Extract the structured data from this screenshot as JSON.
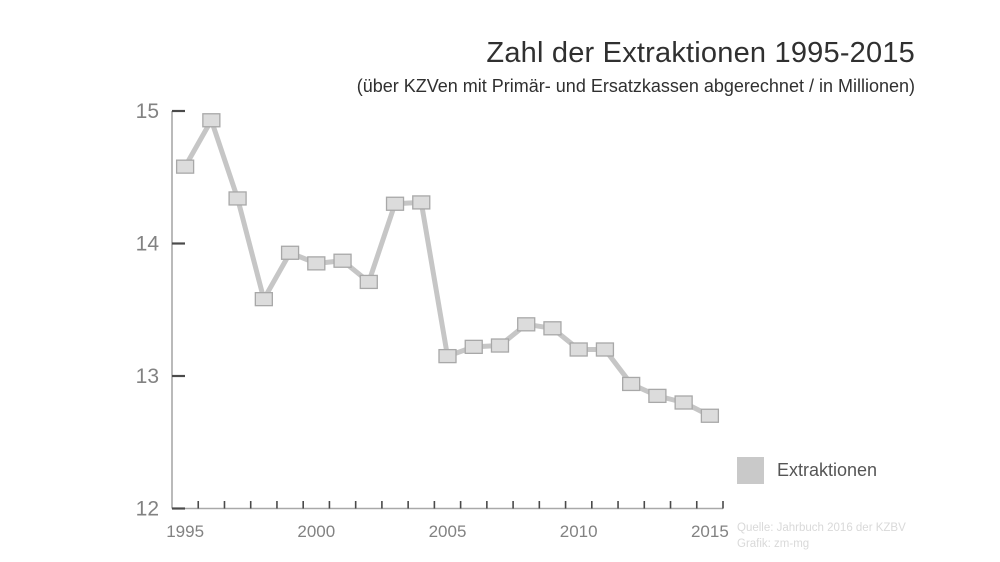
{
  "header": {
    "title": "Zahl der Extraktionen 1995-2015",
    "subtitle": "(über KZVen mit Primär- und Ersatzkassen abgerechnet / in Millionen)"
  },
  "legend": {
    "label": "Extraktionen"
  },
  "credits": {
    "source": "Quelle: Jahrbuch 2016 der KZBV",
    "graphic": "Grafik: zm-mg"
  },
  "colors": {
    "line": "#c6c6c6",
    "marker_fill": "#dcdcdc",
    "marker_stroke": "#a8a8a8",
    "axis": "#a9a9a9",
    "tick": "#4a4a4a",
    "tick_label": "#828282",
    "legend_swatch": "#c9c9c9",
    "title_text": "#303030",
    "legend_text": "#555555",
    "credits_text": "#d9d9d9"
  },
  "chart_data": {
    "type": "line",
    "title": "Zahl der Extraktionen 1995-2015",
    "subtitle": "(über KZVen mit Primär- und Ersatzkassen abgerechnet / in Millionen)",
    "series_name": "Extraktionen",
    "x": [
      1995,
      1996,
      1997,
      1998,
      1999,
      2000,
      2001,
      2002,
      2003,
      2004,
      2005,
      2006,
      2007,
      2008,
      2009,
      2010,
      2011,
      2012,
      2013,
      2014,
      2015
    ],
    "values": [
      14.58,
      14.93,
      14.34,
      13.58,
      13.93,
      13.85,
      13.87,
      13.71,
      14.3,
      14.31,
      13.15,
      13.22,
      13.23,
      13.39,
      13.36,
      13.2,
      13.2,
      12.94,
      12.85,
      12.8,
      12.7
    ],
    "ylim": [
      12,
      15
    ],
    "yticks": [
      12,
      13,
      14,
      15
    ],
    "xtick_labels": [
      1995,
      2000,
      2005,
      2010,
      2015
    ],
    "xlabel": "",
    "ylabel": "",
    "grid": false,
    "marker": "square",
    "legend_position": "lower right"
  }
}
